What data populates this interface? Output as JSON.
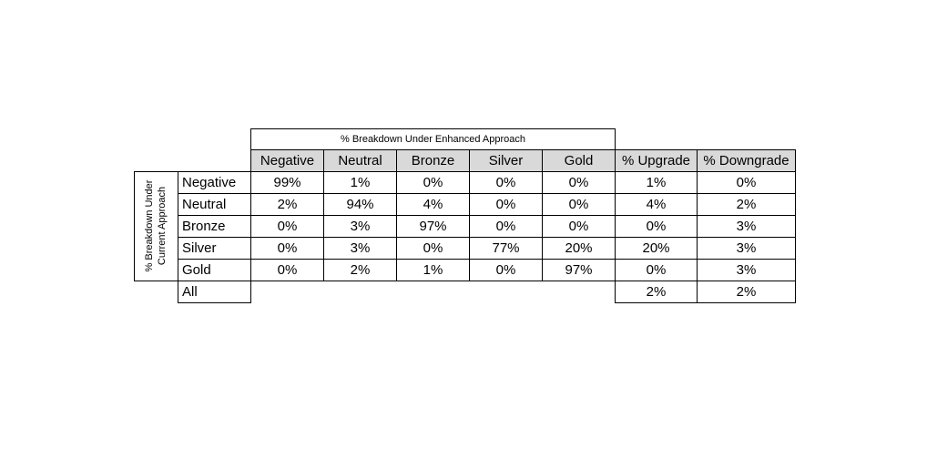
{
  "table": {
    "title": "% Breakdown Under Enhanced Approach",
    "row_axis_label": [
      "% Breakdown Under",
      "Current Approach"
    ],
    "columns": [
      "Negative",
      "Neutral",
      "Bronze",
      "Silver",
      "Gold",
      "% Upgrade",
      "% Downgrade"
    ],
    "rows": [
      {
        "label": "Negative",
        "cells": [
          "99%",
          "1%",
          "0%",
          "0%",
          "0%",
          "1%",
          "0%"
        ]
      },
      {
        "label": "Neutral",
        "cells": [
          "2%",
          "94%",
          "4%",
          "0%",
          "0%",
          "4%",
          "2%"
        ]
      },
      {
        "label": "Bronze",
        "cells": [
          "0%",
          "3%",
          "97%",
          "0%",
          "0%",
          "0%",
          "3%"
        ]
      },
      {
        "label": "Silver",
        "cells": [
          "0%",
          "3%",
          "0%",
          "77%",
          "20%",
          "20%",
          "3%"
        ]
      },
      {
        "label": "Gold",
        "cells": [
          "0%",
          "2%",
          "1%",
          "0%",
          "97%",
          "0%",
          "3%"
        ]
      }
    ],
    "total": {
      "label": "All",
      "cells": [
        "2%",
        "2%"
      ]
    }
  }
}
